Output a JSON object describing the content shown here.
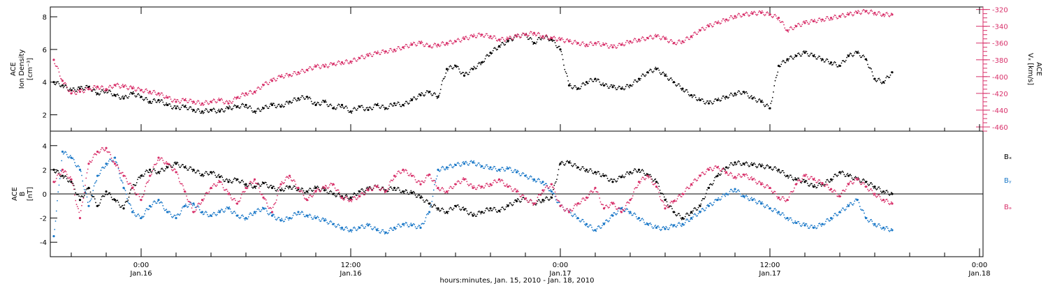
{
  "figure": {
    "x_axis_label": "hours:minutes, Jan. 15, 2010 - Jan. 18, 2010",
    "x_ticks": [
      {
        "t": 0,
        "label1": "0:00",
        "label2": "Jan.16"
      },
      {
        "t": 12,
        "label1": "12:00",
        "label2": "Jan.16"
      },
      {
        "t": 24,
        "label1": "0:00",
        "label2": "Jan.17"
      },
      {
        "t": 36,
        "label1": "12:00",
        "label2": "Jan.17"
      },
      {
        "t": 48,
        "label1": "0:00",
        "label2": "Jan.18"
      }
    ],
    "colors": {
      "black": "#000000",
      "red": "#d8306a",
      "blue": "#1a78c8"
    }
  },
  "chart_data": [
    {
      "type": "scatter",
      "panel": "top",
      "y_left_label_line1": "ACE",
      "y_left_label_line2": "Ion Density",
      "y_left_label_line3": "[cm⁻³]",
      "y_right_label_line1": "ACE",
      "y_right_label_line2": "Vₓ [km/s]",
      "x_range_hours": [
        -5.2,
        48.2
      ],
      "ylim_left": [
        1.0,
        8.6
      ],
      "ylim_right": [
        -465,
        -317
      ],
      "y_left_ticks": [
        2,
        4,
        6,
        8
      ],
      "y_right_ticks": [
        -460,
        -440,
        -420,
        -400,
        -380,
        -360,
        -340,
        -320
      ],
      "series": [
        {
          "color": "black",
          "axis": "left",
          "x": [
            -5.0,
            -4.5,
            -4.0,
            -3.5,
            -3.0,
            -2.5,
            -2.0,
            -1.5,
            -1.0,
            -0.5,
            0,
            0.5,
            1,
            1.5,
            2,
            2.5,
            3,
            3.5,
            4,
            4.5,
            5,
            5.5,
            6,
            6.5,
            7,
            7.5,
            8,
            8.5,
            9,
            9.5,
            10,
            10.5,
            11,
            11.5,
            12,
            12.5,
            13,
            13.5,
            14,
            14.5,
            15,
            15.5,
            16,
            16.5,
            17,
            17.5,
            18,
            18.5,
            19,
            19.5,
            20,
            20.5,
            21,
            21.5,
            22,
            22.5,
            23,
            23.5,
            24,
            24.5,
            25,
            25.5,
            26,
            26.5,
            27,
            27.5,
            28,
            28.5,
            29,
            29.5,
            30,
            30.5,
            31,
            31.5,
            32,
            32.5,
            33,
            33.5,
            34,
            34.5,
            35,
            35.5,
            36,
            36.5,
            37,
            37.5,
            38,
            38.5,
            39,
            39.5,
            40,
            40.5,
            41,
            41.5,
            42,
            42.5,
            43
          ],
          "y": [
            4.0,
            3.8,
            3.5,
            3.6,
            3.7,
            3.3,
            3.5,
            3.2,
            3.0,
            3.3,
            3.1,
            2.8,
            2.9,
            2.6,
            2.4,
            2.5,
            2.3,
            2.2,
            2.3,
            2.2,
            2.4,
            2.5,
            2.6,
            2.2,
            2.4,
            2.6,
            2.5,
            2.8,
            3.0,
            3.1,
            2.6,
            2.8,
            2.4,
            2.6,
            2.2,
            2.5,
            2.3,
            2.6,
            2.4,
            2.7,
            2.6,
            2.9,
            3.2,
            3.4,
            3.1,
            4.8,
            5.0,
            4.4,
            4.8,
            5.2,
            5.8,
            6.2,
            6.5,
            6.8,
            6.9,
            6.4,
            6.8,
            6.6,
            6.0,
            3.8,
            3.6,
            4.0,
            4.2,
            3.8,
            3.7,
            3.6,
            3.8,
            4.2,
            4.6,
            4.8,
            4.4,
            4.0,
            3.6,
            3.2,
            2.9,
            2.7,
            2.9,
            3.1,
            3.3,
            3.4,
            3.0,
            2.8,
            2.4,
            5.0,
            5.4,
            5.6,
            5.8,
            5.6,
            5.4,
            5.2,
            5.0,
            5.6,
            5.8,
            5.4,
            4.2,
            4.0,
            4.6
          ]
        },
        {
          "color": "red",
          "axis": "right",
          "x": [
            -5.0,
            -4.5,
            -4.0,
            -3.5,
            -3.0,
            -2.5,
            -2.0,
            -1.5,
            -1.0,
            -0.5,
            0,
            0.5,
            1,
            1.5,
            2,
            2.5,
            3,
            3.5,
            4,
            4.5,
            5,
            5.5,
            6,
            6.5,
            7,
            7.5,
            8,
            8.5,
            9,
            9.5,
            10,
            10.5,
            11,
            11.5,
            12,
            12.5,
            13,
            13.5,
            14,
            14.5,
            15,
            15.5,
            16,
            16.5,
            17,
            17.5,
            18,
            18.5,
            19,
            19.5,
            20,
            20.5,
            21,
            21.5,
            22,
            22.5,
            23,
            23.5,
            24,
            24.5,
            25,
            25.5,
            26,
            26.5,
            27,
            27.5,
            28,
            28.5,
            29,
            29.5,
            30,
            30.5,
            31,
            31.5,
            32,
            32.5,
            33,
            33.5,
            34,
            34.5,
            35,
            35.5,
            36,
            36.5,
            37,
            37.5,
            38,
            38.5,
            39,
            39.5,
            40,
            40.5,
            41,
            41.5,
            42,
            42.5,
            43
          ],
          "y": [
            -380,
            -405,
            -420,
            -418,
            -415,
            -412,
            -415,
            -410,
            -412,
            -414,
            -416,
            -418,
            -420,
            -425,
            -430,
            -428,
            -430,
            -432,
            -430,
            -428,
            -432,
            -425,
            -420,
            -418,
            -410,
            -405,
            -400,
            -398,
            -395,
            -392,
            -388,
            -388,
            -385,
            -383,
            -382,
            -378,
            -375,
            -372,
            -370,
            -368,
            -365,
            -362,
            -360,
            -364,
            -362,
            -360,
            -358,
            -355,
            -352,
            -350,
            -352,
            -356,
            -355,
            -352,
            -350,
            -348,
            -352,
            -354,
            -356,
            -358,
            -360,
            -362,
            -360,
            -362,
            -365,
            -362,
            -358,
            -356,
            -354,
            -352,
            -355,
            -360,
            -358,
            -352,
            -345,
            -340,
            -336,
            -332,
            -328,
            -326,
            -325,
            -324,
            -326,
            -330,
            -345,
            -340,
            -336,
            -334,
            -332,
            -330,
            -328,
            -326,
            -324,
            -322,
            -324,
            -326,
            -326
          ]
        }
      ]
    },
    {
      "type": "scatter",
      "panel": "bottom",
      "y_left_label_line1": "ACE",
      "y_left_label_line2": "B",
      "y_left_label_line3": "[nT]",
      "x_range_hours": [
        -5.2,
        48.2
      ],
      "ylim": [
        -5.2,
        5.2
      ],
      "y_ticks": [
        -4,
        -2,
        0,
        2,
        4
      ],
      "zero_line": true,
      "series": [
        {
          "name": "Bₓ",
          "color": "black",
          "x": [
            -5.0,
            -4.5,
            -4.0,
            -3.5,
            -3.0,
            -2.5,
            -2.0,
            -1.5,
            -1.0,
            -0.5,
            0,
            0.5,
            1,
            1.5,
            2,
            2.5,
            3,
            3.5,
            4,
            4.5,
            5,
            5.5,
            6,
            6.5,
            7,
            7.5,
            8,
            8.5,
            9,
            9.5,
            10,
            10.5,
            11,
            11.5,
            12,
            12.5,
            13,
            13.5,
            14,
            14.5,
            15,
            15.5,
            16,
            16.5,
            17,
            17.5,
            18,
            18.5,
            19,
            19.5,
            20,
            20.5,
            21,
            21.5,
            22,
            22.5,
            23,
            23.5,
            24,
            24.5,
            25,
            25.5,
            26,
            26.5,
            27,
            27.5,
            28,
            28.5,
            29,
            29.5,
            30,
            30.5,
            31,
            31.5,
            32,
            32.5,
            33,
            33.5,
            34,
            34.5,
            35,
            35.5,
            36,
            36.5,
            37,
            37.5,
            38,
            38.5,
            39,
            39.5,
            40,
            40.5,
            41,
            41.5,
            42,
            42.5,
            43
          ],
          "y": [
            2.0,
            1.5,
            1.0,
            -0.5,
            0.5,
            -1.0,
            0.2,
            -0.5,
            -1.2,
            0.5,
            1.5,
            2.0,
            1.8,
            2.2,
            2.5,
            2.2,
            2.0,
            1.6,
            1.8,
            1.4,
            1.0,
            1.2,
            0.8,
            0.6,
            0.9,
            0.5,
            0.3,
            0.6,
            0.4,
            0.2,
            0.5,
            0.3,
            0.0,
            -0.2,
            -0.3,
            0.2,
            0.4,
            0.6,
            0.3,
            0.5,
            0.2,
            0.1,
            -0.3,
            -0.8,
            -1.2,
            -1.5,
            -1.0,
            -1.3,
            -1.8,
            -1.5,
            -1.2,
            -1.4,
            -1.0,
            -0.6,
            -0.4,
            -0.8,
            -0.5,
            -0.3,
            2.5,
            2.6,
            2.2,
            2.0,
            1.8,
            1.5,
            1.0,
            1.4,
            1.8,
            2.0,
            1.6,
            1.0,
            -0.5,
            -1.5,
            -2.0,
            -1.5,
            -1.0,
            0.5,
            1.5,
            2.2,
            2.6,
            2.5,
            2.4,
            2.3,
            2.2,
            2.0,
            1.5,
            1.2,
            1.0,
            0.6,
            0.8,
            1.2,
            1.8,
            1.5,
            1.2,
            1.0,
            0.6,
            0.2,
            0.0
          ]
        },
        {
          "name": "Bᵧ",
          "color": "blue",
          "x": [
            -5.0,
            -4.5,
            -4.0,
            -3.5,
            -3.0,
            -2.5,
            -2.0,
            -1.5,
            -1.0,
            -0.5,
            0,
            0.5,
            1,
            1.5,
            2,
            2.5,
            3,
            3.5,
            4,
            4.5,
            5,
            5.5,
            6,
            6.5,
            7,
            7.5,
            8,
            8.5,
            9,
            9.5,
            10,
            10.5,
            11,
            11.5,
            12,
            12.5,
            13,
            13.5,
            14,
            14.5,
            15,
            15.5,
            16,
            16.5,
            17,
            17.5,
            18,
            18.5,
            19,
            19.5,
            20,
            20.5,
            21,
            21.5,
            22,
            22.5,
            23,
            23.5,
            24,
            24.5,
            25,
            25.5,
            26,
            26.5,
            27,
            27.5,
            28,
            28.5,
            29,
            29.5,
            30,
            30.5,
            31,
            31.5,
            32,
            32.5,
            33,
            33.5,
            34,
            34.5,
            35,
            35.5,
            36,
            36.5,
            37,
            37.5,
            38,
            38.5,
            39,
            39.5,
            40,
            40.5,
            41,
            41.5,
            42,
            42.5,
            43
          ],
          "y": [
            -3.5,
            3.5,
            3.0,
            2.0,
            -1.0,
            1.5,
            2.5,
            3.0,
            0.5,
            -1.5,
            -2.0,
            -1.0,
            -0.5,
            -1.5,
            -2.0,
            -1.0,
            -0.8,
            -1.5,
            -1.8,
            -1.5,
            -1.2,
            -1.8,
            -2.0,
            -1.5,
            -1.2,
            -1.8,
            -2.2,
            -2.0,
            -1.5,
            -1.8,
            -2.0,
            -2.2,
            -2.5,
            -2.8,
            -3.0,
            -2.8,
            -2.6,
            -3.0,
            -3.2,
            -2.8,
            -2.5,
            -2.6,
            -2.8,
            -1.5,
            2.0,
            2.2,
            2.4,
            2.5,
            2.6,
            2.3,
            2.2,
            2.0,
            2.1,
            1.8,
            1.5,
            1.2,
            1.0,
            0.2,
            -1.0,
            -1.5,
            -2.0,
            -2.5,
            -3.0,
            -2.5,
            -1.8,
            -1.2,
            -1.5,
            -2.0,
            -2.5,
            -2.8,
            -2.9,
            -2.6,
            -2.5,
            -2.0,
            -1.5,
            -1.0,
            -0.5,
            0.0,
            0.4,
            -0.2,
            -0.5,
            -0.8,
            -1.2,
            -1.5,
            -2.0,
            -2.4,
            -2.6,
            -2.8,
            -2.5,
            -2.0,
            -1.5,
            -1.0,
            -0.5,
            -2.0,
            -2.5,
            -2.8,
            -3.0
          ]
        },
        {
          "name": "Bₔ",
          "color": "red",
          "x": [
            -5.0,
            -4.5,
            -4.0,
            -3.5,
            -3.0,
            -2.5,
            -2.0,
            -1.5,
            -1.0,
            -0.5,
            0,
            0.5,
            1,
            1.5,
            2,
            2.5,
            3,
            3.5,
            4,
            4.5,
            5,
            5.5,
            6,
            6.5,
            7,
            7.5,
            8,
            8.5,
            9,
            9.5,
            10,
            10.5,
            11,
            11.5,
            12,
            12.5,
            13,
            13.5,
            14,
            14.5,
            15,
            15.5,
            16,
            16.5,
            17,
            17.5,
            18,
            18.5,
            19,
            19.5,
            20,
            20.5,
            21,
            21.5,
            22,
            22.5,
            23,
            23.5,
            24,
            24.5,
            25,
            25.5,
            26,
            26.5,
            27,
            27.5,
            28,
            28.5,
            29,
            29.5,
            30,
            30.5,
            31,
            31.5,
            32,
            32.5,
            33,
            33.5,
            34,
            34.5,
            35,
            35.5,
            36,
            36.5,
            37,
            37.5,
            38,
            38.5,
            39,
            39.5,
            40,
            40.5,
            41,
            41.5,
            42,
            42.5,
            43
          ],
          "y": [
            1.0,
            2.0,
            1.2,
            -2.0,
            2.5,
            3.5,
            3.8,
            2.5,
            1.5,
            0.5,
            -0.5,
            1.5,
            3.0,
            2.5,
            1.8,
            0.2,
            -1.5,
            -0.5,
            0.5,
            1.0,
            0.0,
            -0.8,
            0.5,
            1.2,
            -0.3,
            -1.5,
            0.8,
            1.5,
            0.5,
            -0.5,
            0.2,
            0.5,
            0.8,
            -0.3,
            -0.5,
            -0.2,
            0.3,
            0.6,
            0.2,
            1.5,
            2.0,
            1.5,
            0.8,
            1.6,
            0.5,
            0.2,
            0.8,
            1.2,
            0.5,
            0.6,
            0.8,
            1.2,
            0.6,
            0.2,
            -0.4,
            -0.8,
            0.3,
            0.8,
            -1.0,
            -1.5,
            -0.8,
            -0.3,
            0.5,
            -1.2,
            -0.8,
            -1.5,
            -0.5,
            1.0,
            1.5,
            0.6,
            -1.2,
            -0.6,
            0.0,
            0.8,
            1.5,
            2.0,
            2.2,
            1.8,
            1.4,
            1.6,
            1.2,
            0.8,
            0.5,
            -0.3,
            -0.5,
            0.8,
            1.5,
            1.2,
            0.9,
            0.4,
            -0.2,
            0.8,
            1.2,
            0.6,
            0.0,
            -0.5,
            -0.8
          ]
        }
      ]
    }
  ]
}
